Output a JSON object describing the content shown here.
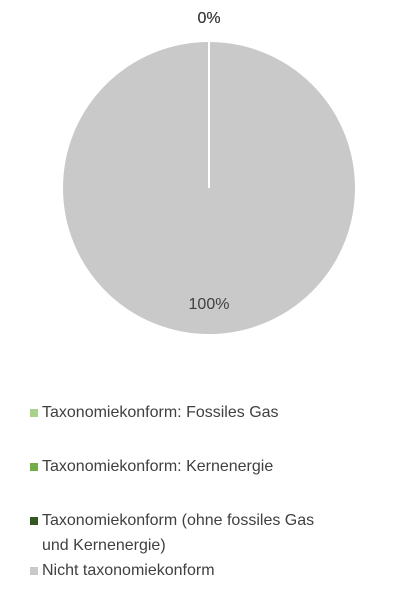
{
  "chart_data": {
    "type": "pie",
    "categories": [
      "Taxonomiekonform: Fossiles Gas",
      "Taxonomiekonform: Kernenergie",
      "Taxonomiekonform (ohne fossiles Gas und Kernenergie)",
      "Nicht taxonomiekonform"
    ],
    "values": [
      0,
      0,
      0,
      100
    ],
    "value_labels": [
      "0%",
      "0%",
      "0%",
      "100%"
    ],
    "colors": [
      "#a9d18e",
      "#70ad47",
      "#375623",
      "#c9c9c9"
    ]
  }
}
